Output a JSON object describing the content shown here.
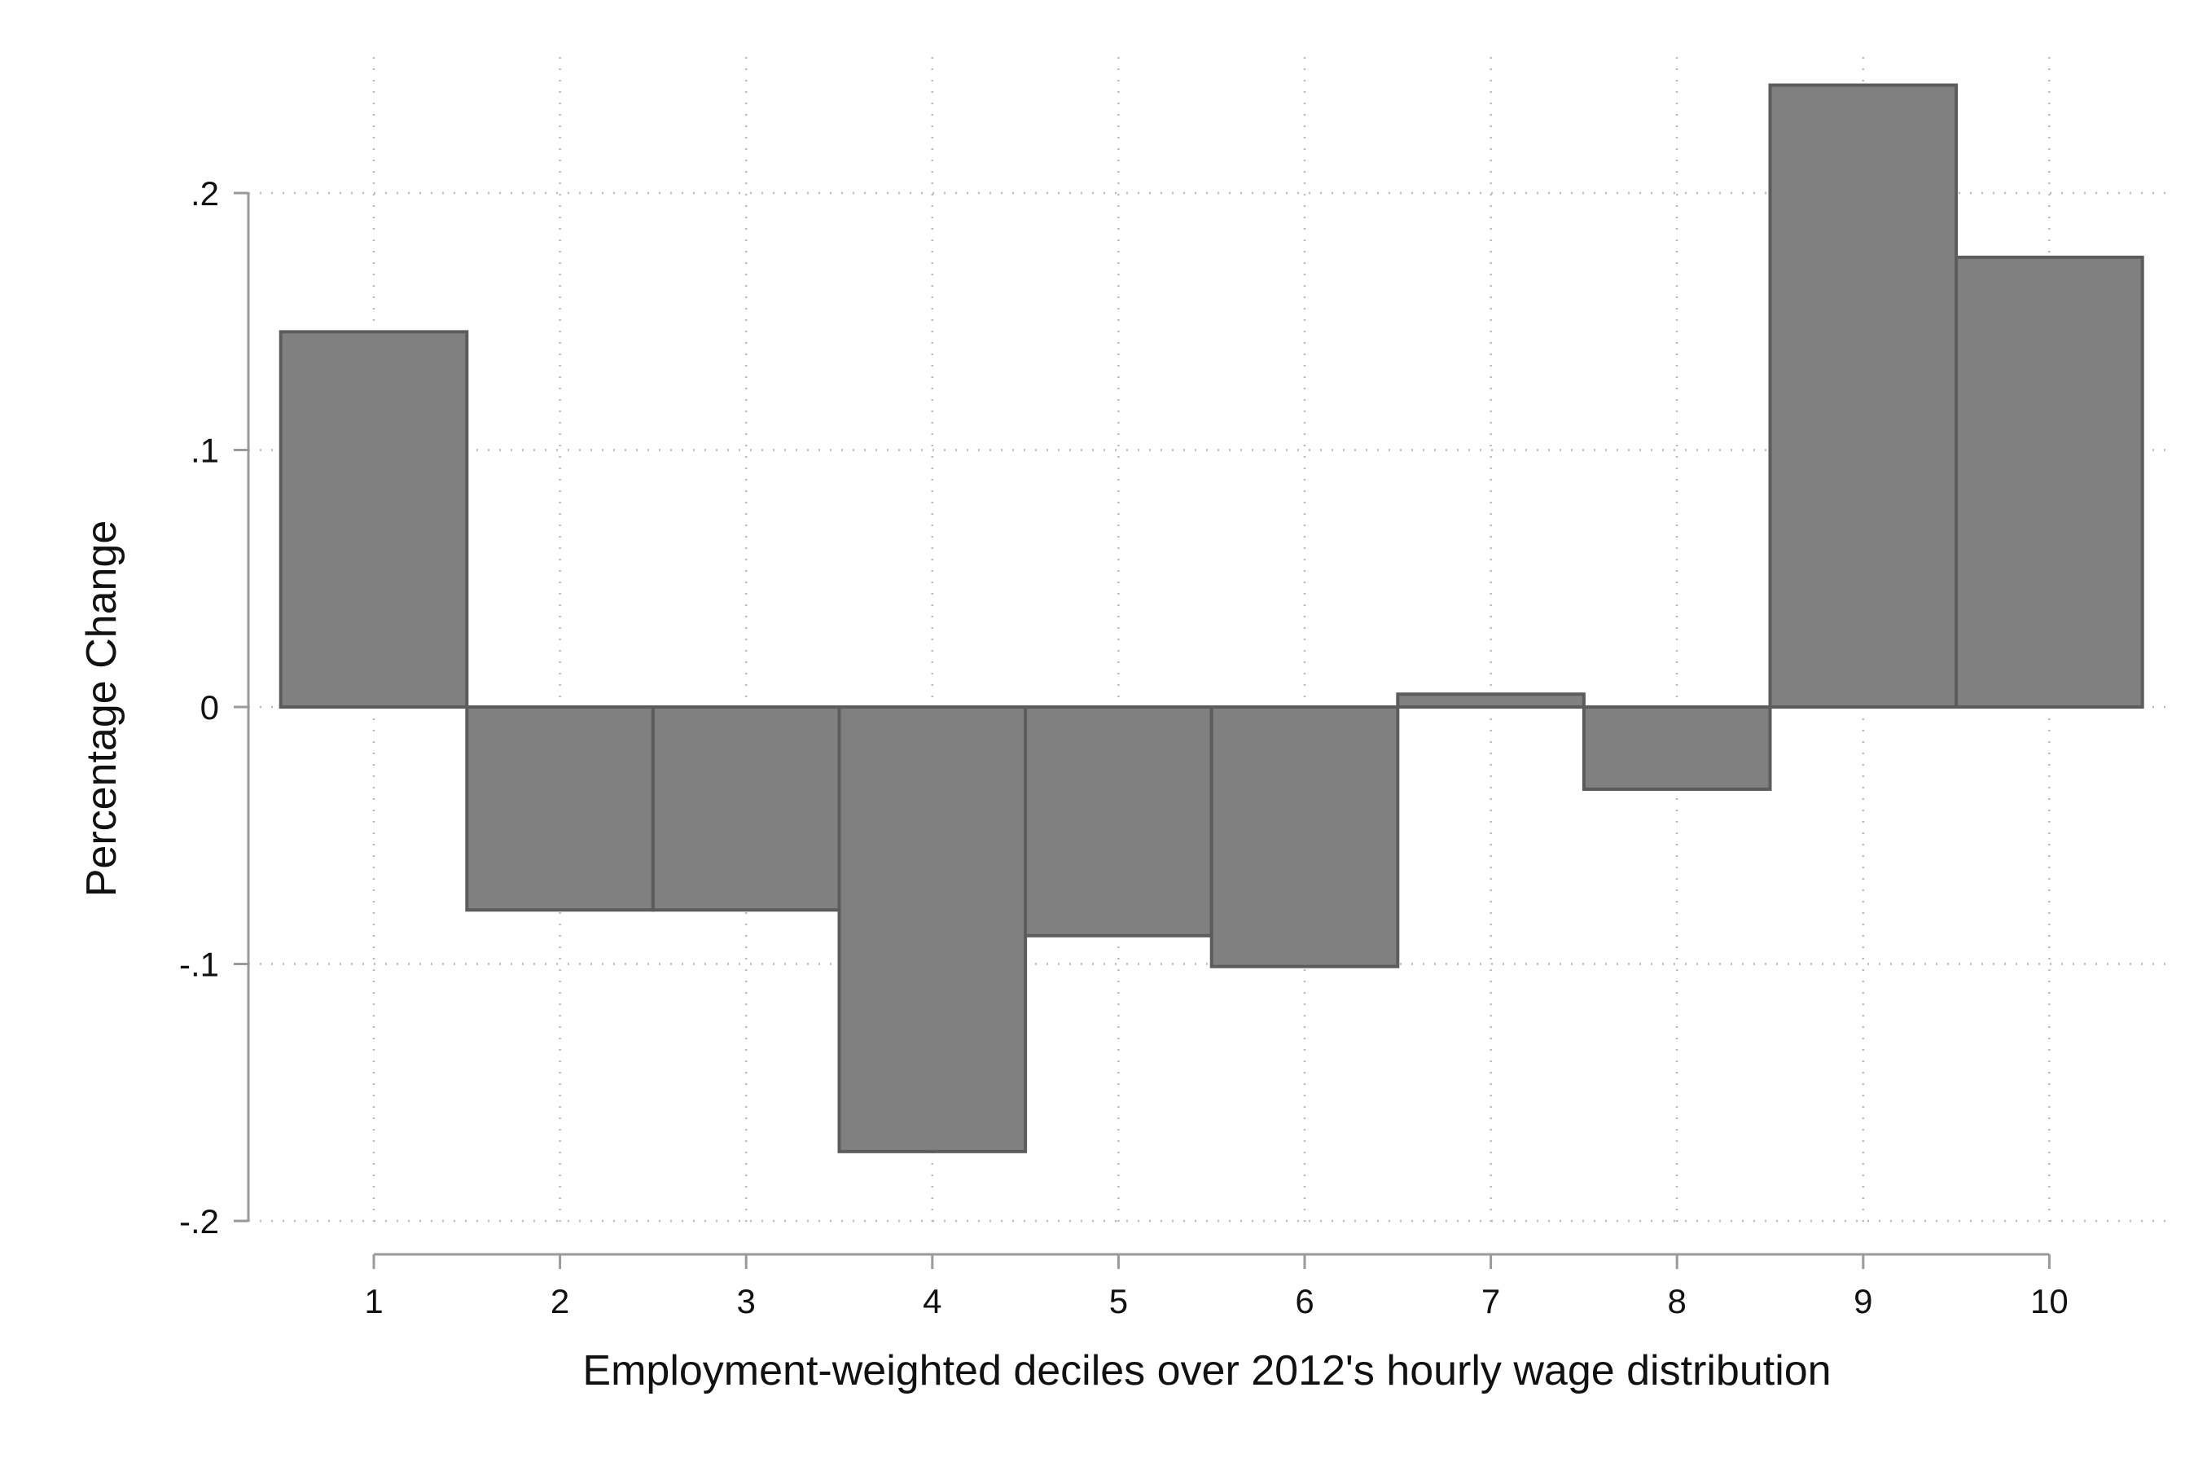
{
  "chart_data": {
    "type": "bar",
    "title": "",
    "xlabel": "Employment-weighted deciles over 2012's hourly wage distribution",
    "ylabel": "Percentage Change",
    "categories": [
      "1",
      "2",
      "3",
      "4",
      "5",
      "6",
      "7",
      "8",
      "9",
      "10"
    ],
    "values": [
      0.146,
      -0.079,
      -0.079,
      -0.173,
      -0.089,
      -0.101,
      0.005,
      -0.032,
      0.242,
      0.175
    ],
    "ylim": [
      -0.2,
      0.2
    ],
    "yticks": [
      -0.2,
      -0.1,
      0,
      0.1,
      0.2
    ],
    "ytick_labels": [
      "-.2",
      "-.1",
      "0",
      ".1",
      ".2"
    ],
    "grid": true,
    "bar_color": "#808080",
    "bar_edge_color": "#5c5c5c"
  }
}
